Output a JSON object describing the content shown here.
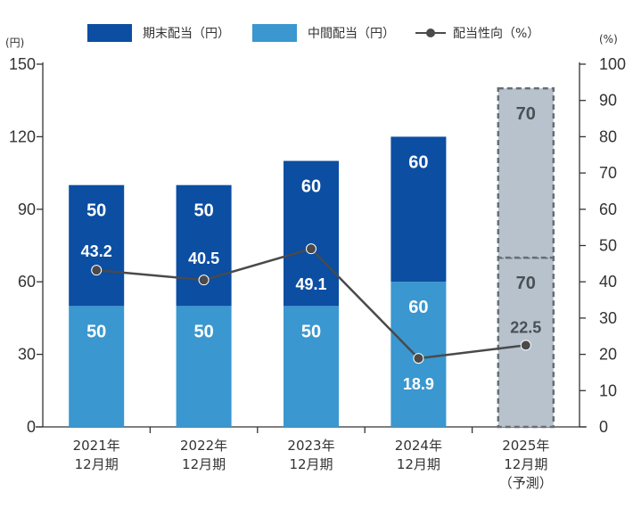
{
  "legend": {
    "final_dividend": "期末配当（円）",
    "interim_dividend": "中間配当（円）",
    "payout_ratio": "配当性向（%）"
  },
  "units": {
    "left": "(円)",
    "right": "(%)"
  },
  "colors": {
    "final": "#0b4ea2",
    "interim": "#3a97cf",
    "forecast_fill": "#b7c2cc",
    "forecast_border": "#666e75",
    "line": "#4a4a4a",
    "axis": "#333333"
  },
  "chart_data": {
    "type": "bar",
    "stacked": true,
    "categories": [
      [
        "2021年",
        "12月期"
      ],
      [
        "2022年",
        "12月期"
      ],
      [
        "2023年",
        "12月期"
      ],
      [
        "2024年",
        "12月期"
      ],
      [
        "2025年",
        "12月期",
        "（予測）"
      ]
    ],
    "series": [
      {
        "name": "中間配当（円）",
        "values": [
          50,
          50,
          50,
          60,
          70
        ],
        "labels": [
          "50",
          "50",
          "50",
          "60",
          "70"
        ]
      },
      {
        "name": "期末配当（円）",
        "values": [
          50,
          50,
          60,
          60,
          70
        ],
        "labels": [
          "50",
          "50",
          "60",
          "60",
          "70"
        ]
      }
    ],
    "line_series": {
      "name": "配当性向（%）",
      "axis": "right",
      "values": [
        43.2,
        40.5,
        49.1,
        18.9,
        22.5
      ],
      "labels": [
        "43.2",
        "40.5",
        "49.1",
        "18.9",
        "22.5"
      ]
    },
    "forecast_index": 4,
    "ylim": [
      0,
      150
    ],
    "yticks": [
      0,
      30,
      60,
      90,
      120,
      150
    ],
    "y2lim": [
      0,
      100
    ],
    "y2ticks": [
      0,
      10,
      20,
      30,
      40,
      50,
      60,
      70,
      80,
      90,
      100
    ],
    "legend_position": "top"
  }
}
